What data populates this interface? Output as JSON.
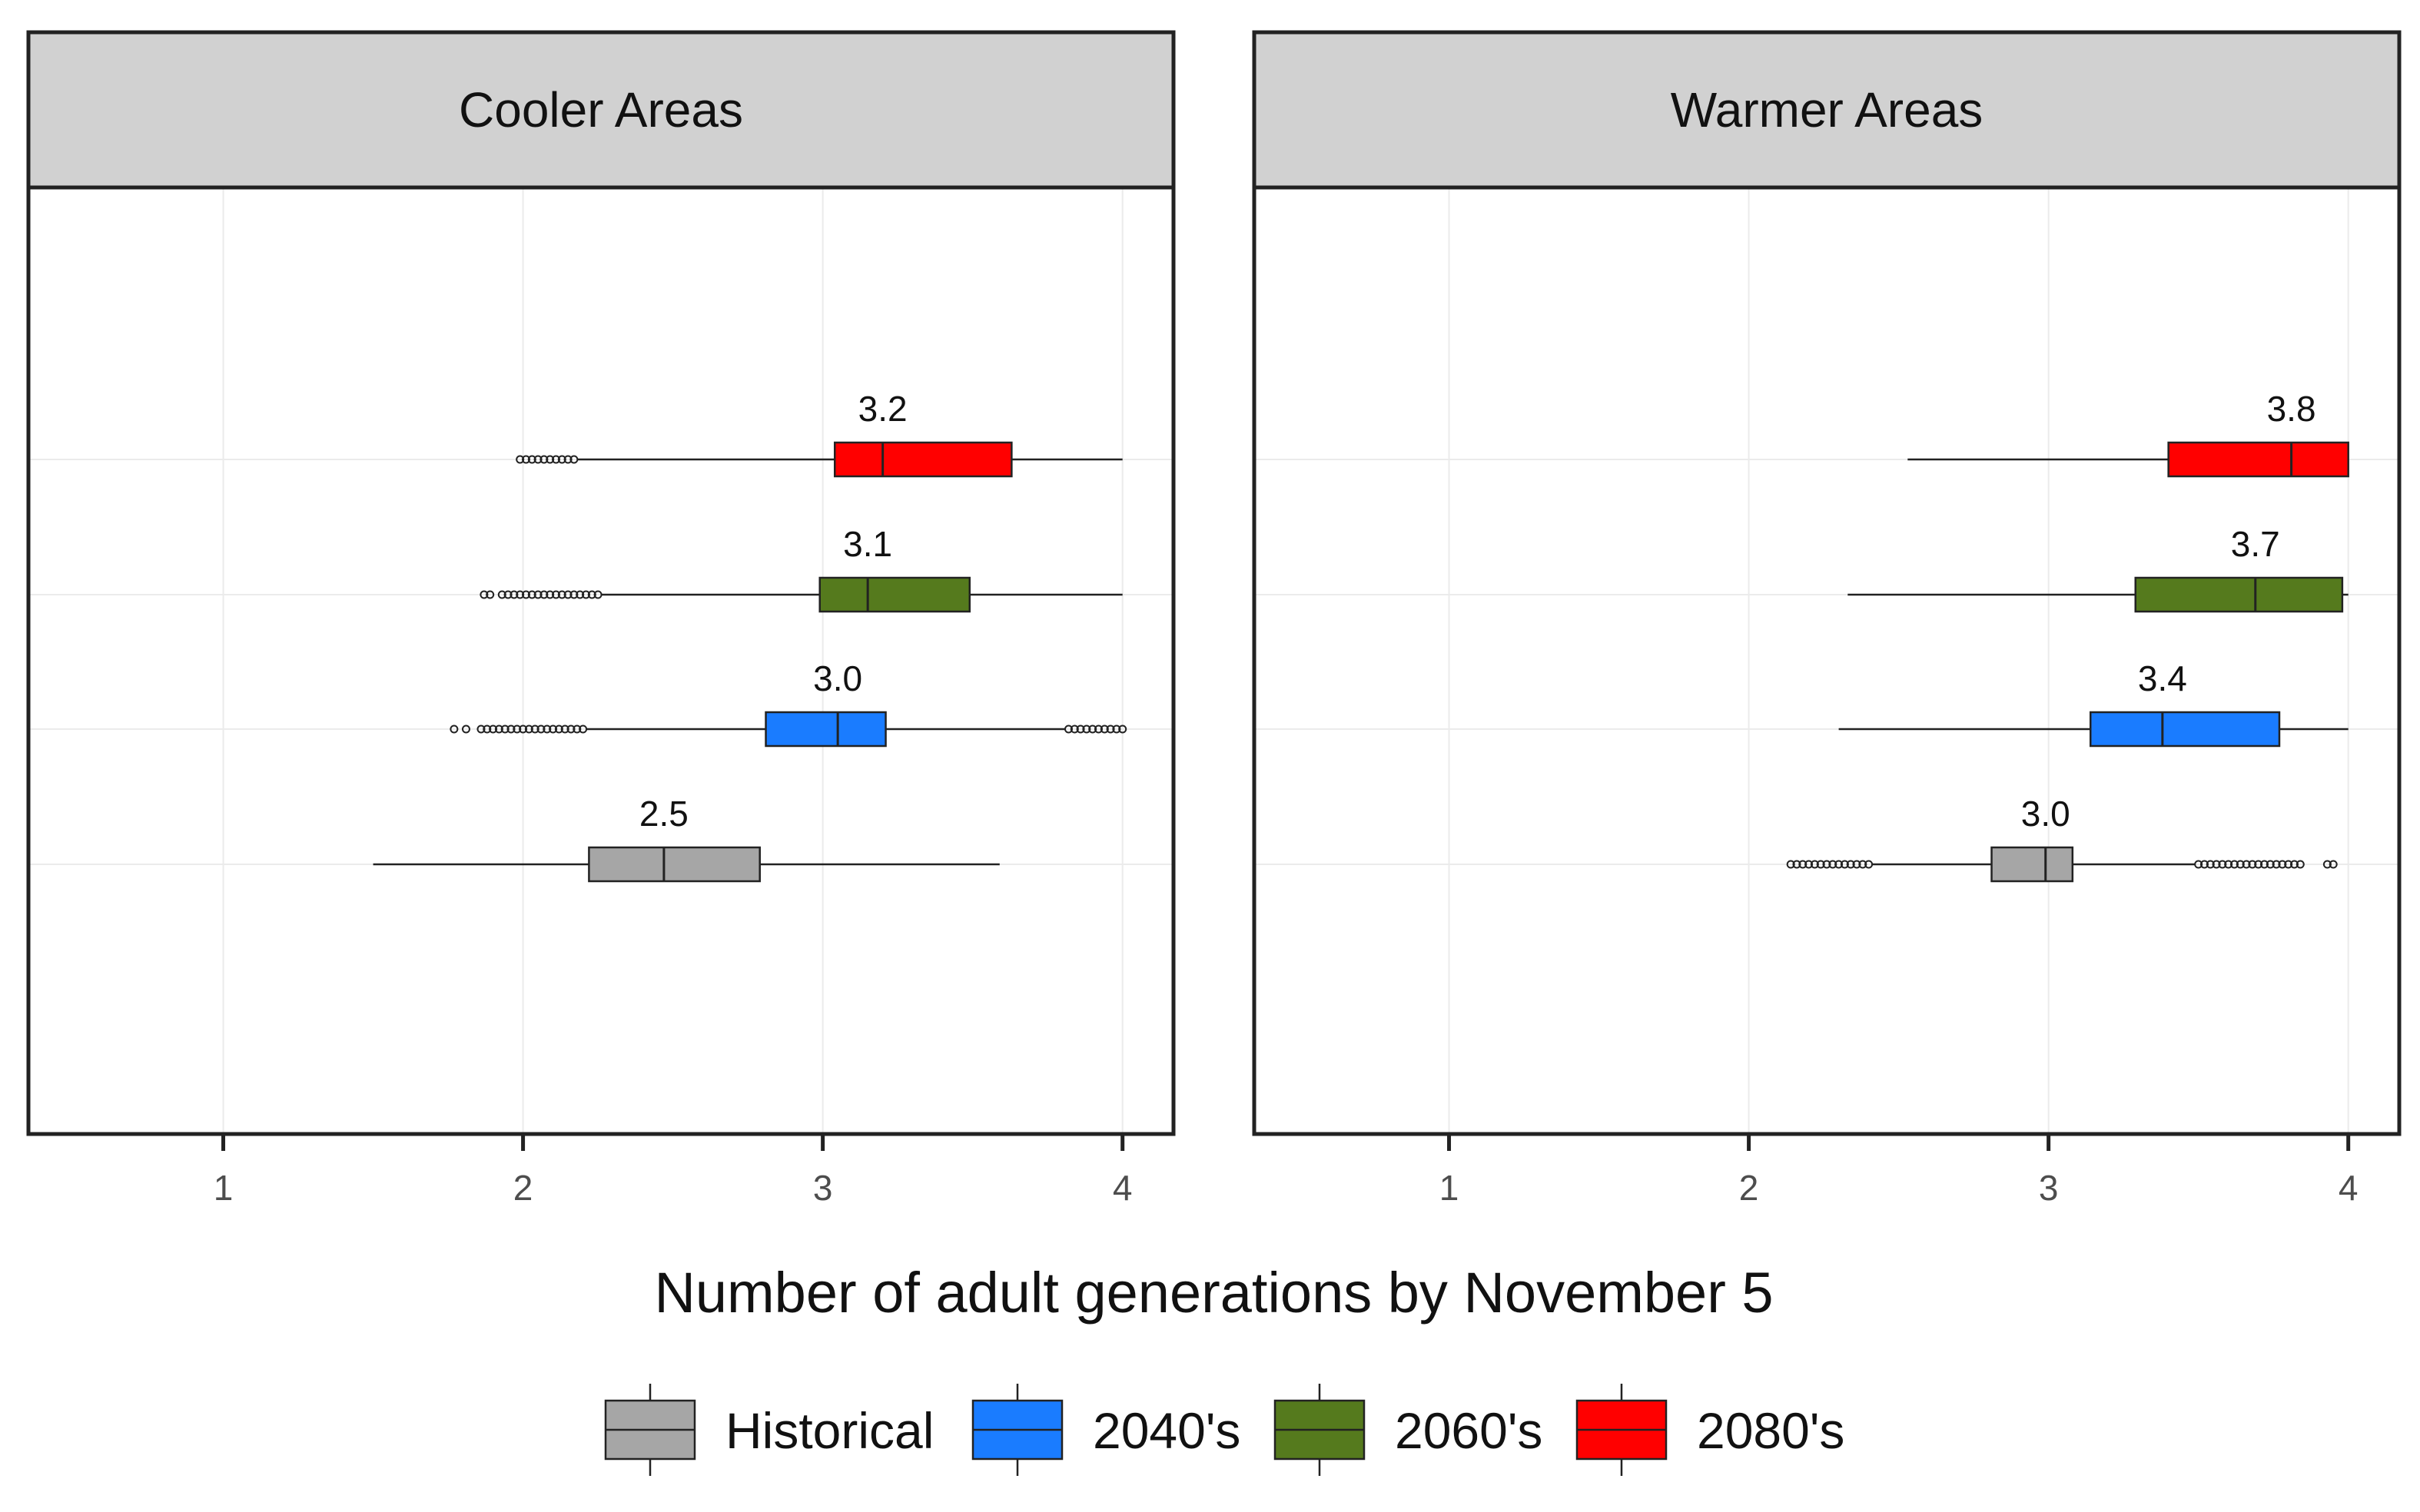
{
  "chart_data": {
    "type": "boxplot",
    "orientation": "horizontal",
    "xlabel": "Number of adult generations by November 5",
    "xlim": [
      0.35,
      4.17
    ],
    "xticks": [
      1,
      2,
      3,
      4
    ],
    "grid": true,
    "legend_position": "bottom",
    "series": [
      {
        "name": "Historical",
        "color": "#A6A6A6"
      },
      {
        "name": "2040's",
        "color": "#1A7CFF"
      },
      {
        "name": "2060's",
        "color": "#557A1D"
      },
      {
        "name": "2080's",
        "color": "#FF0000"
      }
    ],
    "panels": [
      {
        "title": "Cooler Areas",
        "boxes": [
          {
            "series": "Historical",
            "whisker_low": 1.5,
            "q1": 2.22,
            "median": 2.47,
            "q3": 2.79,
            "whisker_high": 3.59,
            "label": "2.5",
            "outliers_low": [],
            "outliers_high": []
          },
          {
            "series": "2040's",
            "whisker_low": 2.21,
            "q1": 2.81,
            "median": 3.05,
            "q3": 3.21,
            "whisker_high": 3.81,
            "label": "3.0",
            "outliers_low": [
              1.77,
              1.81,
              1.86,
              1.88,
              1.9,
              1.92,
              1.94,
              1.96,
              1.98,
              2.0,
              2.02,
              2.04,
              2.06,
              2.08,
              2.1,
              2.12,
              2.14,
              2.16,
              2.18,
              2.2
            ],
            "outliers_high": [
              3.82,
              3.84,
              3.86,
              3.88,
              3.9,
              3.92,
              3.94,
              3.96,
              3.98,
              4.0
            ]
          },
          {
            "series": "2060's",
            "whisker_low": 2.26,
            "q1": 2.99,
            "median": 3.15,
            "q3": 3.49,
            "whisker_high": 4.0,
            "label": "3.1",
            "outliers_low": [
              1.87,
              1.89,
              1.93,
              1.95,
              1.97,
              1.99,
              2.01,
              2.03,
              2.05,
              2.07,
              2.09,
              2.11,
              2.13,
              2.15,
              2.17,
              2.19,
              2.21,
              2.23,
              2.25
            ],
            "outliers_high": []
          },
          {
            "series": "2080's",
            "whisker_low": 2.18,
            "q1": 3.04,
            "median": 3.2,
            "q3": 3.63,
            "whisker_high": 4.0,
            "label": "3.2",
            "outliers_low": [
              1.99,
              2.01,
              2.03,
              2.05,
              2.07,
              2.09,
              2.11,
              2.13,
              2.15,
              2.17
            ],
            "outliers_high": []
          }
        ]
      },
      {
        "title": "Warmer Areas",
        "boxes": [
          {
            "series": "Historical",
            "whisker_low": 2.41,
            "q1": 2.81,
            "median": 2.99,
            "q3": 3.08,
            "whisker_high": 3.49,
            "label": "3.0",
            "outliers_low": [
              2.14,
              2.16,
              2.18,
              2.2,
              2.22,
              2.24,
              2.26,
              2.28,
              2.3,
              2.32,
              2.34,
              2.36,
              2.38,
              2.4
            ],
            "outliers_high": [
              3.5,
              3.52,
              3.54,
              3.56,
              3.58,
              3.6,
              3.62,
              3.64,
              3.66,
              3.68,
              3.7,
              3.72,
              3.74,
              3.76,
              3.78,
              3.8,
              3.82,
              3.84,
              3.93,
              3.95
            ]
          },
          {
            "series": "2040's",
            "whisker_low": 2.3,
            "q1": 3.14,
            "median": 3.38,
            "q3": 3.77,
            "whisker_high": 4.0,
            "label": "3.4",
            "outliers_low": [],
            "outliers_high": []
          },
          {
            "series": "2060's",
            "whisker_low": 2.33,
            "q1": 3.29,
            "median": 3.69,
            "q3": 3.98,
            "whisker_high": 4.0,
            "label": "3.7",
            "outliers_low": [],
            "outliers_high": []
          },
          {
            "series": "2080's",
            "whisker_low": 2.53,
            "q1": 3.4,
            "median": 3.81,
            "q3": 4.0,
            "whisker_high": 4.0,
            "label": "3.8",
            "outliers_low": [],
            "outliers_high": []
          }
        ]
      }
    ]
  }
}
